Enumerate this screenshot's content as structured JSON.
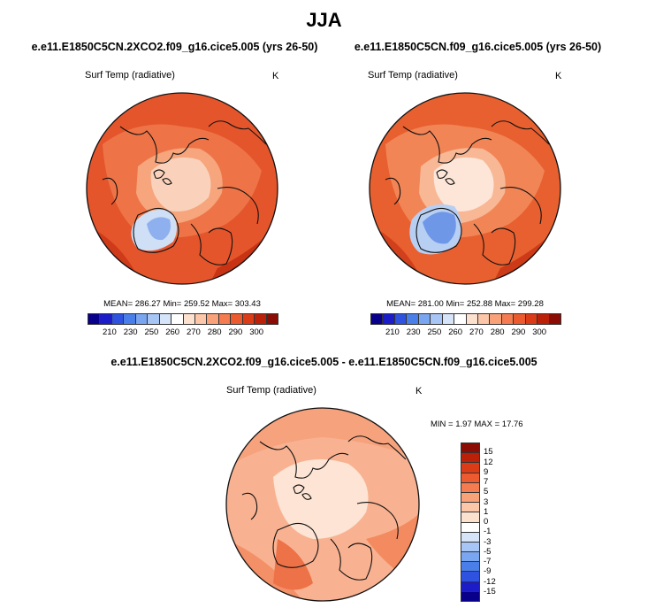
{
  "main_title": "JJA",
  "panel_left": {
    "case": "e.e11.E1850C5CN.2XCO2.f09_g16.cice5.005 (yrs 26-50)",
    "variable": "Surf Temp (radiative)",
    "units": "K",
    "stats": "MEAN= 286.27  Min= 259.52  Max= 303.43"
  },
  "panel_right": {
    "case": "e.e11.E1850C5CN.f09_g16.cice5.005 (yrs 26-50)",
    "variable": "Surf Temp (radiative)",
    "units": "K",
    "stats": "MEAN= 281.00  Min= 252.88  Max= 299.28"
  },
  "panel_diff": {
    "case": "e.e11.E1850C5CN.2XCO2.f09_g16.cice5.005 - e.e11.E1850C5CN.f09_g16.cice5.005",
    "variable": "Surf Temp (radiative)",
    "units": "K",
    "stats": "MIN =   1.97 MAX =  17.76"
  },
  "colorbar_abs": {
    "colors": [
      "#08008a",
      "#1c1cc8",
      "#2f52e0",
      "#4a7ee8",
      "#7aa5f0",
      "#a8c6f5",
      "#d6e4fa",
      "#ffffff",
      "#fde1cf",
      "#fcc6a8",
      "#f9a27a",
      "#f47c50",
      "#ec5a2f",
      "#db3b17",
      "#bb2008",
      "#8a0c04"
    ],
    "tick_labels": [
      "210",
      "230",
      "250",
      "260",
      "270",
      "280",
      "290",
      "300"
    ]
  },
  "colorbar_diff": {
    "colors": [
      "#8a0c04",
      "#bb2008",
      "#db3b17",
      "#ec5a2f",
      "#f47c50",
      "#f9a27a",
      "#fcc6a8",
      "#fde1cf",
      "#ffffff",
      "#d6e4fa",
      "#a8c6f5",
      "#7aa5f0",
      "#4a7ee8",
      "#2f52e0",
      "#1c1cc8",
      "#08008a"
    ],
    "tick_labels": [
      "15",
      "12",
      "9",
      "7",
      "5",
      "3",
      "1",
      "0",
      "-1",
      "-3",
      "-5",
      "-7",
      "-9",
      "-12",
      "-15"
    ]
  }
}
